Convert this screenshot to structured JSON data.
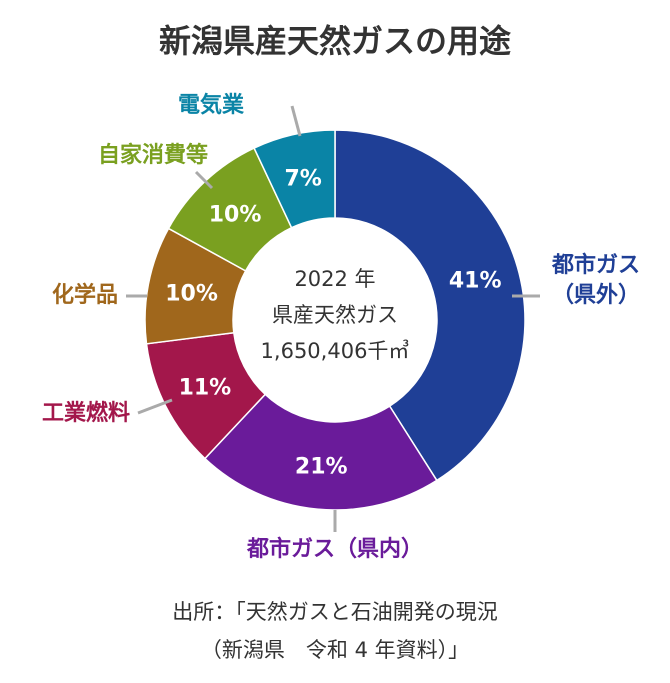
{
  "chart_data": {
    "type": "pie",
    "title": "新潟県産天然ガスの用途",
    "center_text": [
      "2022 年",
      "県産天然ガス",
      "1,650,406千㎥"
    ],
    "slices": [
      {
        "label": "都市ガス（県外）",
        "value": 41,
        "value_label": "41%",
        "color": "#1f3f96"
      },
      {
        "label": "都市ガス（県内）",
        "value": 21,
        "value_label": "21%",
        "color": "#6a1b9a"
      },
      {
        "label": "工業燃料",
        "value": 11,
        "value_label": "11%",
        "color": "#a3174b"
      },
      {
        "label": "化学品",
        "value": 10,
        "value_label": "10%",
        "color": "#a0671c"
      },
      {
        "label": "自家消費等",
        "value": 10,
        "value_label": "10%",
        "color": "#7aa020"
      },
      {
        "label": "電気業",
        "value": 7,
        "value_label": "7%",
        "color": "#0a84a6"
      }
    ]
  },
  "source": {
    "line1": "出所：「天然ガスと石油開発の現況",
    "line2": "（新潟県　令和 4 年資料）」"
  }
}
